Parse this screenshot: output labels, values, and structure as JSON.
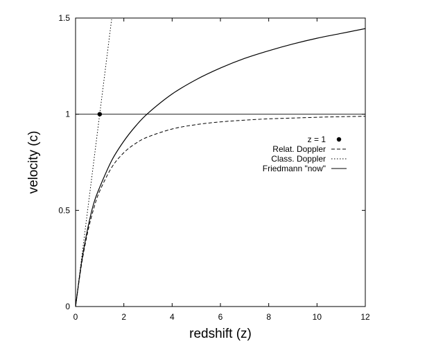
{
  "chart_data": {
    "type": "line",
    "title": "",
    "xlabel": "redshift (z)",
    "ylabel": "velocity (c)",
    "xlim": [
      0,
      12
    ],
    "ylim": [
      0,
      1.5
    ],
    "xticks": [
      "0",
      "2",
      "4",
      "6",
      "8",
      "10",
      "12"
    ],
    "yticks": [
      "0",
      "0.5",
      "1",
      "1.5"
    ],
    "xtick_values": [
      0,
      2,
      4,
      6,
      8,
      10,
      12
    ],
    "ytick_values": [
      0,
      0.5,
      1,
      1.5
    ],
    "grid": false,
    "legend_position": "right",
    "reference_line": {
      "y": 1
    },
    "series": [
      {
        "name": "z = 1",
        "style": "point",
        "x": [
          1
        ],
        "y": [
          1
        ]
      },
      {
        "name": "Relat. Doppler",
        "style": "dashed",
        "x": [
          0,
          0.25,
          0.5,
          0.75,
          1,
          1.5,
          2,
          2.5,
          3,
          4,
          5,
          6,
          7,
          8,
          9,
          10,
          11,
          12
        ],
        "y": [
          0,
          0.22,
          0.385,
          0.508,
          0.6,
          0.724,
          0.8,
          0.849,
          0.882,
          0.923,
          0.946,
          0.96,
          0.969,
          0.976,
          0.98,
          0.984,
          0.987,
          0.989
        ]
      },
      {
        "name": "Class. Doppler",
        "style": "dotted",
        "x": [
          0,
          1.5
        ],
        "y": [
          0,
          1.5
        ]
      },
      {
        "name": "Friedmann \"now\"",
        "style": "solid",
        "x": [
          0,
          0.25,
          0.5,
          0.75,
          1,
          1.5,
          2,
          2.5,
          3,
          4,
          5,
          6,
          7,
          8,
          9,
          10,
          11,
          12
        ],
        "y": [
          0,
          0.232,
          0.403,
          0.535,
          0.62,
          0.76,
          0.86,
          0.94,
          1.005,
          1.105,
          1.18,
          1.24,
          1.29,
          1.33,
          1.365,
          1.395,
          1.42,
          1.445
        ]
      }
    ]
  }
}
